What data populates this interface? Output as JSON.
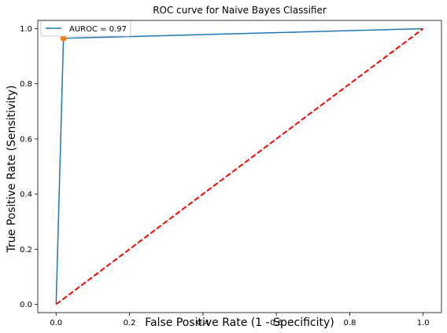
{
  "chart_data": {
    "type": "line",
    "title": "ROC curve for Naive Bayes Classifier",
    "xlabel": "False Positive Rate (1 - Specificity)",
    "ylabel": "True Positive Rate (Sensitivity)",
    "xlim": [
      -0.05,
      1.05
    ],
    "ylim": [
      -0.03,
      1.03
    ],
    "xticks": [
      0.0,
      0.2,
      0.4,
      0.6,
      0.8,
      1.0
    ],
    "yticks": [
      0.0,
      0.2,
      0.4,
      0.6,
      0.8,
      1.0
    ],
    "xtick_labels": [
      "0.0",
      "0.2",
      "0.4",
      "0.6",
      "0.8",
      "1.0"
    ],
    "ytick_labels": [
      "0.0",
      "0.2",
      "0.4",
      "0.6",
      "0.8",
      "1.0"
    ],
    "grid": false,
    "legend_position": "top-left",
    "series": [
      {
        "name": "AUROC = 0.97",
        "style": "solid",
        "color": "#1f77b4",
        "x": [
          0.0,
          0.02,
          1.0
        ],
        "y": [
          0.0,
          0.965,
          1.0
        ]
      },
      {
        "style": "dashed",
        "color": "#ff0000",
        "x": [
          0.0,
          1.0
        ],
        "y": [
          0.0,
          1.0
        ]
      }
    ],
    "markers": [
      {
        "x": 0.02,
        "y": 0.965,
        "color": "#ff7f0e"
      }
    ]
  }
}
